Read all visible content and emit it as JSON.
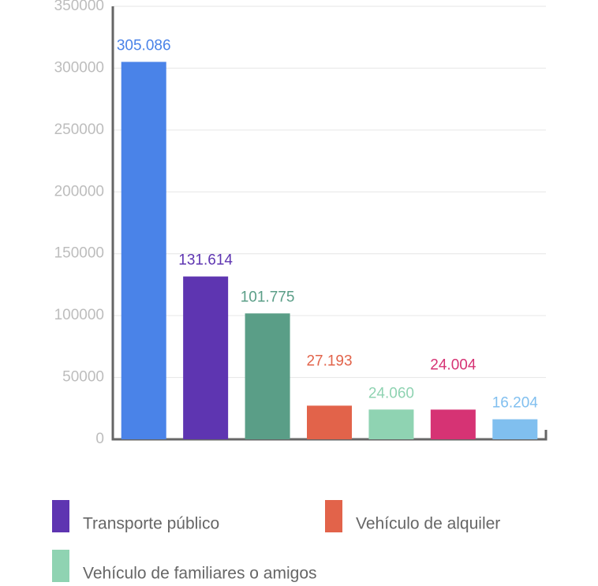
{
  "chart_data": {
    "type": "bar",
    "categories": [
      null,
      "Transporte público",
      null,
      "Vehículo de alquiler",
      "Vehículo de familiares o amigos",
      null,
      null
    ],
    "values": [
      305086,
      131614,
      101775,
      27193,
      24060,
      24004,
      16204
    ],
    "value_labels": [
      "305.086",
      "131.614",
      "101.775",
      "27.193",
      "24.060",
      "24.004",
      "16.204"
    ],
    "colors": [
      "#4a83e8",
      "#5e35b1",
      "#5a9e87",
      "#e2634a",
      "#8fd3b2",
      "#d63374",
      "#80bfef"
    ],
    "ylim": [
      0,
      350000
    ],
    "yticks": [
      0,
      50000,
      100000,
      150000,
      200000,
      250000,
      300000,
      350000
    ],
    "grid": true
  }
}
